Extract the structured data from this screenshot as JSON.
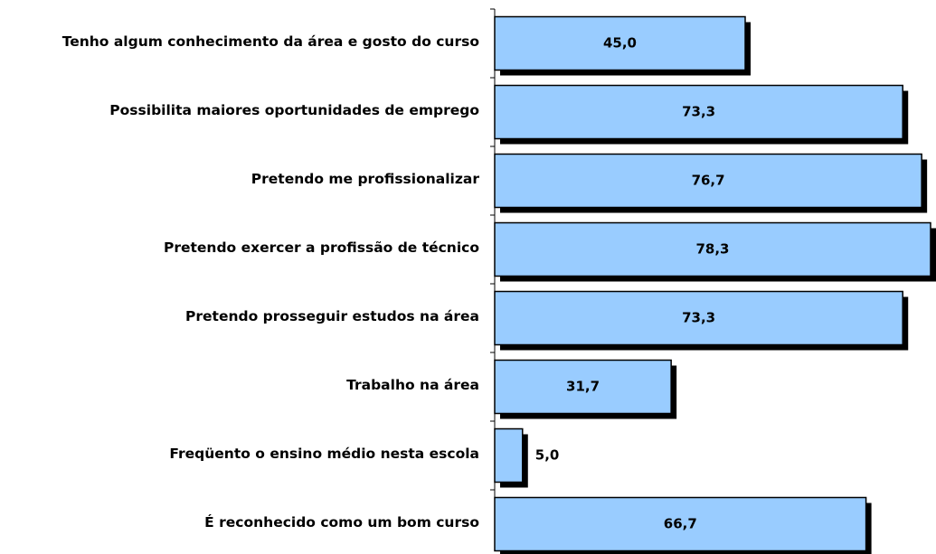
{
  "chart_data": {
    "type": "bar",
    "orientation": "horizontal",
    "categories": [
      "Tenho algum conhecimento da área e gosto do curso",
      "Possibilita maiores oportunidades de emprego",
      "Pretendo me profissionalizar",
      "Pretendo exercer a profissão de técnico",
      "Pretendo prosseguir estudos na área",
      "Trabalho na área",
      "Freqüento o ensino médio nesta escola",
      "É reconhecido como um bom curso"
    ],
    "values": [
      45.0,
      73.3,
      76.7,
      78.3,
      73.3,
      31.7,
      5.0,
      66.7
    ],
    "value_labels": [
      "45,0",
      "73,3",
      "76,7",
      "78,3",
      "73,3",
      "31,7",
      "5,0",
      "66,7"
    ],
    "color": "#99ccff"
  }
}
